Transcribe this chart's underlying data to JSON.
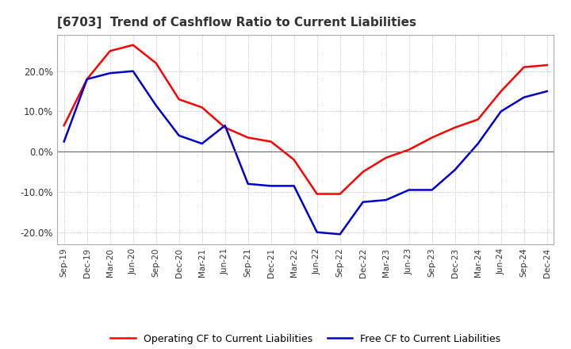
{
  "title": "[6703]  Trend of Cashflow Ratio to Current Liabilities",
  "x_labels": [
    "Sep-19",
    "Dec-19",
    "Mar-20",
    "Jun-20",
    "Sep-20",
    "Dec-20",
    "Mar-21",
    "Jun-21",
    "Sep-21",
    "Dec-21",
    "Mar-22",
    "Jun-22",
    "Sep-22",
    "Dec-22",
    "Mar-23",
    "Jun-23",
    "Sep-23",
    "Dec-23",
    "Mar-24",
    "Jun-24",
    "Sep-24",
    "Dec-24"
  ],
  "operating_cf": [
    6.5,
    18.0,
    25.0,
    26.5,
    22.0,
    13.0,
    11.0,
    6.0,
    3.5,
    2.5,
    -2.0,
    -10.5,
    -10.5,
    -5.0,
    -1.5,
    0.5,
    3.5,
    6.0,
    8.0,
    15.0,
    21.0,
    21.5
  ],
  "free_cf": [
    2.5,
    18.0,
    19.5,
    20.0,
    11.5,
    4.0,
    2.0,
    6.5,
    -8.0,
    -8.5,
    -8.5,
    -20.0,
    -20.5,
    -12.5,
    -12.0,
    -9.5,
    -9.5,
    -4.5,
    2.0,
    10.0,
    13.5,
    15.0
  ],
  "operating_color": "#ff0000",
  "free_color": "#0000cc",
  "ylim": [
    -23,
    29
  ],
  "yticks": [
    -20,
    -10,
    0,
    10,
    20
  ],
  "background_color": "#ffffff",
  "grid_color": "#aaaaaa",
  "zero_line_color": "#666666",
  "title_color": "#333333",
  "legend_labels": [
    "Operating CF to Current Liabilities",
    "Free CF to Current Liabilities"
  ]
}
